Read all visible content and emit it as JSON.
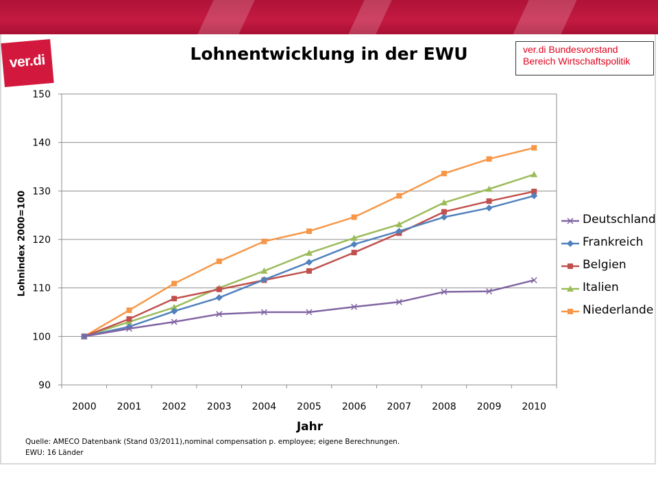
{
  "header": {
    "logo_text": "ver.di",
    "title": "Lohnentwicklung in der EWU"
  },
  "infobox": {
    "line1": "ver.di Bundesvorstand",
    "line2": "Bereich Wirtschaftspolitik"
  },
  "source": {
    "line1": "Quelle: AMECO Datenbank (Stand 03/2011),nominal compensation p. employee; eigene Berechnungen.",
    "line2": "EWU: 16 Länder"
  },
  "colors": {
    "brand": "#c41a42",
    "info_text": "#e0001b"
  },
  "chart_data": {
    "type": "line",
    "xlabel": "Jahr",
    "ylabel": "Lohnindex 2000=100",
    "categories": [
      "2000",
      "2001",
      "2002",
      "2003",
      "2004",
      "2005",
      "2006",
      "2007",
      "2008",
      "2009",
      "2010"
    ],
    "ylim": [
      90,
      150
    ],
    "yticks": [
      90,
      100,
      110,
      120,
      130,
      140,
      150
    ],
    "grid": true,
    "legend_position": "right",
    "series": [
      {
        "name": "Deutschland",
        "color": "#8064a2",
        "marker": "x",
        "values": [
          100,
          101.6,
          103.0,
          104.6,
          105.0,
          105.0,
          106.1,
          107.1,
          109.2,
          109.3,
          111.6
        ]
      },
      {
        "name": "Frankreich",
        "color": "#4f81bd",
        "marker": "diamond",
        "values": [
          100,
          102.0,
          105.2,
          108.0,
          111.7,
          115.3,
          119.0,
          121.7,
          124.6,
          126.5,
          129.0
        ]
      },
      {
        "name": "Belgien",
        "color": "#c0504d",
        "marker": "square",
        "values": [
          100,
          103.6,
          107.8,
          109.7,
          111.6,
          113.5,
          117.3,
          121.3,
          125.7,
          127.9,
          129.9
        ]
      },
      {
        "name": "Italien",
        "color": "#9bbb59",
        "marker": "triangle",
        "values": [
          100,
          103.0,
          106.0,
          110.0,
          113.5,
          117.2,
          120.3,
          123.1,
          127.6,
          130.4,
          133.4
        ]
      },
      {
        "name": "Niederlande",
        "color": "#f79646",
        "marker": "square",
        "values": [
          100,
          105.4,
          110.9,
          115.5,
          119.6,
          121.7,
          124.6,
          129.0,
          133.6,
          136.6,
          138.9
        ]
      }
    ]
  }
}
